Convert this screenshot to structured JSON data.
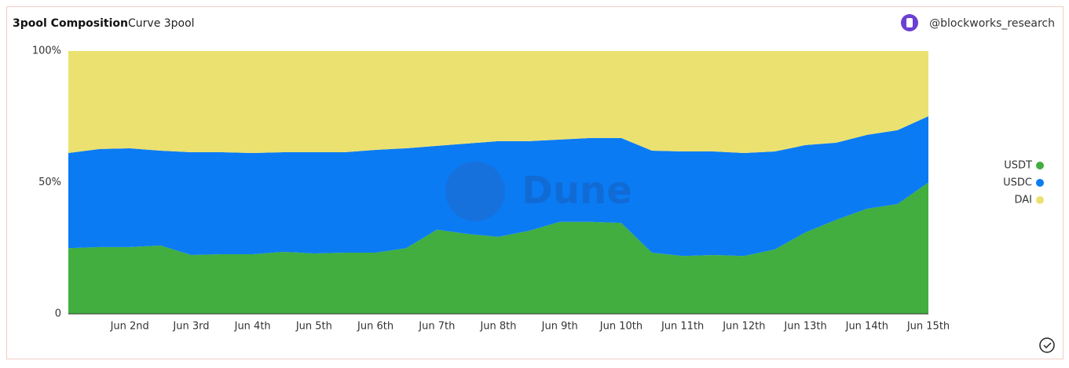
{
  "header": {
    "title": "3pool Composition",
    "subtitle": "Curve 3pool",
    "author": "@blockworks_research"
  },
  "chart_data": {
    "type": "stacked-area",
    "watermark": "Dune",
    "categories": [
      null,
      null,
      "Jun 2nd",
      null,
      "Jun 3rd",
      null,
      "Jun 4th",
      null,
      "Jun 5th",
      null,
      "Jun 6th",
      null,
      "Jun 7th",
      null,
      "Jun 8th",
      null,
      "Jun 9th",
      null,
      "Jun 10th",
      null,
      "Jun 11th",
      null,
      "Jun 12th",
      null,
      "Jun 13th",
      null,
      "Jun 14th",
      null,
      "Jun 15th"
    ],
    "series": [
      {
        "name": "USDT",
        "color": "#41ae3f",
        "values": [
          25,
          25.4,
          25.4,
          26,
          22.4,
          22.7,
          22.7,
          23.6,
          23,
          23.3,
          23.3,
          25,
          32,
          30.4,
          29.3,
          31.6,
          35,
          35,
          34.6,
          23.3,
          22,
          22.4,
          22,
          24.5,
          31,
          35.8,
          40,
          41.8,
          50
        ]
      },
      {
        "name": "USDC",
        "color": "#0b7bf3",
        "values": [
          36.2,
          37.3,
          37.6,
          36.1,
          39.1,
          38.8,
          38.5,
          37.9,
          38.5,
          38.2,
          39.1,
          38,
          31.9,
          34.4,
          36.4,
          34.1,
          31.3,
          31.9,
          32.3,
          38.8,
          39.8,
          39.4,
          39.2,
          37.3,
          33.2,
          29.3,
          28.1,
          28.1,
          25.2
        ]
      },
      {
        "name": "DAI",
        "color": "#ebe170",
        "values": [
          38.8,
          37.3,
          37,
          37.9,
          38.5,
          38.5,
          38.8,
          38.5,
          38.5,
          38.5,
          37.6,
          37,
          36.1,
          35.2,
          34.3,
          34.3,
          33.7,
          33.1,
          33.1,
          37.9,
          38.2,
          38.2,
          38.8,
          38.2,
          35.8,
          34.9,
          31.9,
          30.1,
          24.8
        ]
      }
    ],
    "ylim": [
      0,
      100
    ],
    "yticks": [
      0,
      {
        "value": 50,
        "label": "50%"
      },
      {
        "value": 100,
        "label": "100%"
      }
    ],
    "grid": false,
    "legend": "right"
  }
}
